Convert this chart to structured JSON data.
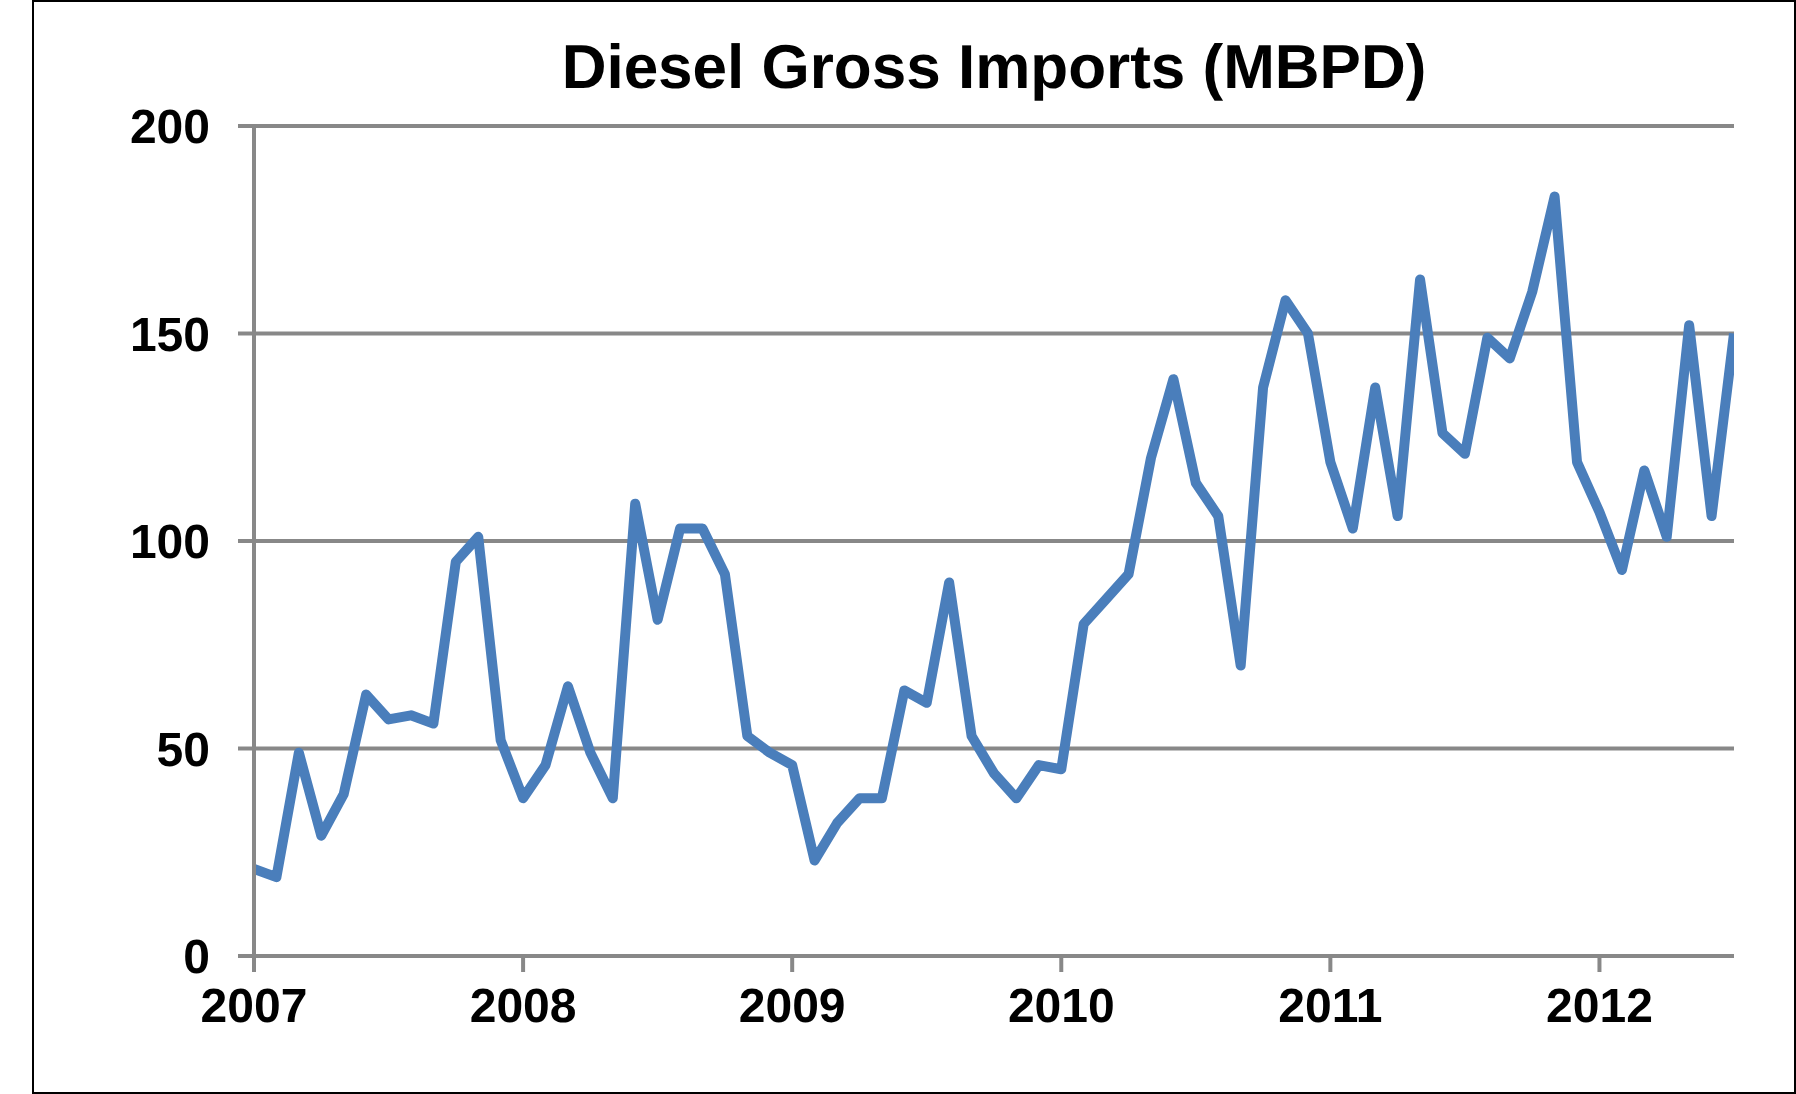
{
  "chart_data": {
    "type": "line",
    "title": "Diesel Gross Imports (MBPD)",
    "x": [
      "2007-01",
      "2007-02",
      "2007-03",
      "2007-04",
      "2007-05",
      "2007-06",
      "2007-07",
      "2007-08",
      "2007-09",
      "2007-10",
      "2007-11",
      "2007-12",
      "2008-01",
      "2008-02",
      "2008-03",
      "2008-04",
      "2008-05",
      "2008-06",
      "2008-07",
      "2008-08",
      "2008-09",
      "2008-10",
      "2008-11",
      "2008-12",
      "2009-01",
      "2009-02",
      "2009-03",
      "2009-04",
      "2009-05",
      "2009-06",
      "2009-07",
      "2009-08",
      "2009-09",
      "2009-10",
      "2009-11",
      "2009-12",
      "2010-01",
      "2010-02",
      "2010-03",
      "2010-04",
      "2010-05",
      "2010-06",
      "2010-07",
      "2010-08",
      "2010-09",
      "2010-10",
      "2010-11",
      "2010-12",
      "2011-01",
      "2011-02",
      "2011-03",
      "2011-04",
      "2011-05",
      "2011-06",
      "2011-07",
      "2011-08",
      "2011-09",
      "2011-10",
      "2011-11",
      "2011-12",
      "2012-01",
      "2012-02",
      "2012-03",
      "2012-04",
      "2012-05",
      "2012-06",
      "2012-07"
    ],
    "series": [
      {
        "color": "#4a7ebb",
        "values": [
          21,
          19,
          49,
          29,
          39,
          63,
          57,
          58,
          56,
          95,
          101,
          52,
          38,
          46,
          65,
          49,
          38,
          109,
          81,
          103,
          103,
          92,
          53,
          49,
          46,
          23,
          32,
          38,
          38,
          64,
          61,
          90,
          53,
          44,
          38,
          46,
          45,
          80,
          86,
          92,
          120,
          139,
          114,
          106,
          70,
          137,
          158,
          150,
          119,
          103,
          137,
          106,
          163,
          126,
          121,
          149,
          144,
          160,
          183,
          119,
          107,
          93,
          117,
          101,
          152,
          106,
          150
        ]
      }
    ],
    "xlim": [
      "2007-01",
      "2012-07"
    ],
    "xticks": [
      "2007",
      "2008",
      "2009",
      "2010",
      "2011",
      "2012"
    ],
    "ylim": [
      0,
      200
    ],
    "yticks": [
      0,
      50,
      100,
      150,
      200
    ],
    "grid": "y",
    "legend": false,
    "marker": "none",
    "line_style": "solid"
  }
}
